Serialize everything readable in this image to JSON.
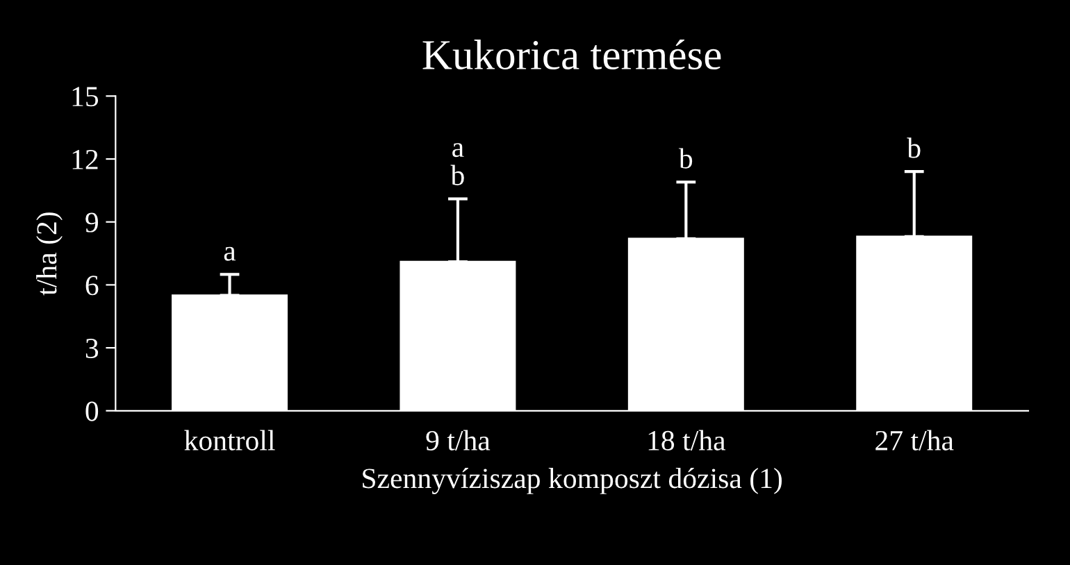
{
  "chart_data": {
    "type": "bar",
    "title": "Kukorica termése",
    "xlabel": "Szennyvíziszap komposzt dózisa (1)",
    "ylabel": "t/ha (2)",
    "categories": [
      "kontroll",
      "9 t/ha",
      "18 t/ha",
      "27 t/ha"
    ],
    "values": [
      5.5,
      7.1,
      8.2,
      8.3
    ],
    "color": "#ffffff",
    "errors": [
      [
        5.5,
        6.5
      ],
      [
        7.1,
        10.1
      ],
      [
        8.2,
        10.9
      ],
      [
        8.3,
        11.4
      ]
    ],
    "ylim": [
      0,
      15
    ],
    "yticks": [
      0,
      3,
      6,
      9,
      12,
      15
    ],
    "grid": false,
    "legend": false,
    "annotations": [
      "a",
      "a\nb",
      "b",
      "b"
    ]
  }
}
